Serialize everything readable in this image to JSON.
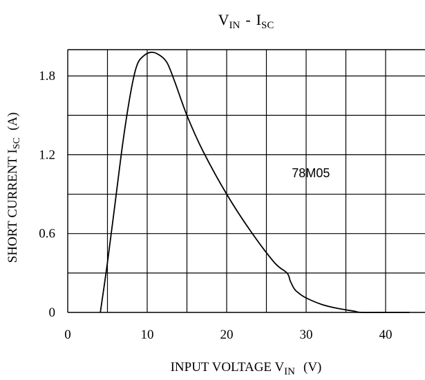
{
  "chart_data": {
    "type": "line",
    "title": {
      "main": "V",
      "main_sub": "IN",
      "sep": "-",
      "second": "I",
      "second_sub": "SC"
    },
    "xlabel": {
      "prefix": "INPUT VOLTAGE V",
      "sub": "IN",
      "unit": "(V)"
    },
    "ylabel": {
      "prefix": "SHORT CURRENT I",
      "sub": "SC",
      "unit": "(A)"
    },
    "xlim": [
      0,
      43
    ],
    "ylim": [
      0,
      2.0
    ],
    "x_ticks": [
      0,
      10,
      20,
      30,
      40
    ],
    "x_tick_labels": [
      "0",
      "10",
      "20",
      "30",
      "40"
    ],
    "y_ticks": [
      0,
      0.6,
      1.2,
      1.8
    ],
    "y_tick_labels": [
      "0",
      "0.6",
      "1.2",
      "1.8"
    ],
    "grid": true,
    "x_grid_step": 5,
    "y_grid_step": 0.3,
    "series": [
      {
        "x": [
          4.1,
          5.0,
          6.0,
          7.0,
          8.0,
          8.7,
          9.5,
          10.5,
          11.5,
          12.5,
          13.5,
          15.0,
          17.0,
          20.0,
          23.0,
          26.0,
          27.6,
          28.0,
          28.5,
          29.0,
          30.0,
          32.0,
          34.0,
          36.0,
          37.0,
          40.0,
          43.0
        ],
        "y": [
          0.0,
          0.38,
          0.85,
          1.32,
          1.7,
          1.88,
          1.95,
          1.98,
          1.96,
          1.9,
          1.75,
          1.5,
          1.23,
          0.9,
          0.62,
          0.38,
          0.3,
          0.24,
          0.18,
          0.15,
          0.11,
          0.06,
          0.03,
          0.01,
          0.0,
          0.0,
          0.0
        ],
        "color": "#000000"
      }
    ],
    "annotations": [
      {
        "text": "78M05",
        "x": 28.2,
        "y": 1.03
      }
    ]
  }
}
